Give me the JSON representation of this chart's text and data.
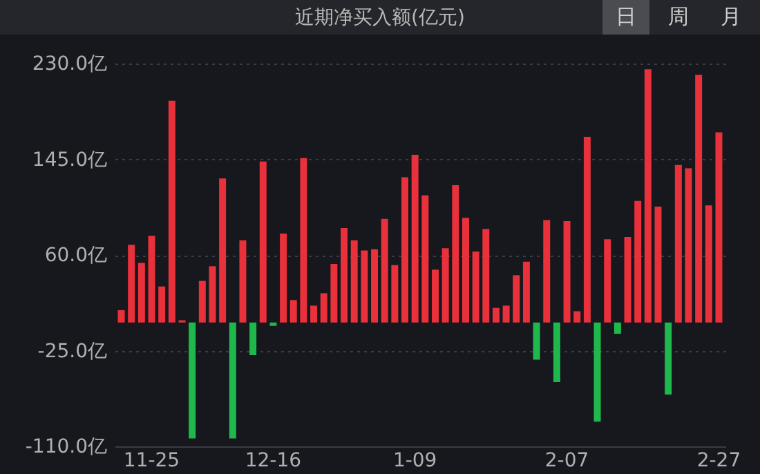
{
  "chart_data": {
    "type": "bar",
    "title": "近期净买入额(亿元)",
    "annotations": [
      "日",
      "周",
      "月"
    ],
    "categories": [
      null,
      null,
      null,
      "11-25",
      null,
      null,
      null,
      null,
      null,
      null,
      null,
      null,
      null,
      null,
      null,
      "12-16",
      null,
      null,
      null,
      null,
      null,
      null,
      null,
      null,
      null,
      null,
      null,
      null,
      null,
      "1-09",
      null,
      null,
      null,
      null,
      null,
      null,
      null,
      null,
      null,
      null,
      null,
      null,
      null,
      null,
      "2-07",
      null,
      null,
      null,
      null,
      null,
      null,
      null,
      null,
      null,
      null,
      null,
      null,
      null,
      null,
      "2-27"
    ],
    "values": [
      11,
      69,
      53,
      77,
      32,
      197,
      2,
      -103,
      37,
      50,
      128,
      -103,
      73,
      -29,
      143,
      -3,
      79,
      20,
      146,
      15,
      26,
      52,
      84,
      73,
      64,
      65,
      92,
      51,
      129,
      149,
      113,
      47,
      66,
      122,
      93,
      63,
      83,
      13,
      15,
      42,
      54,
      -33,
      91,
      -53,
      90,
      10,
      165,
      -88,
      74,
      -10,
      76,
      108,
      225,
      103,
      -64,
      140,
      137,
      220,
      104,
      169
    ],
    "colors": [
      "#e8313b",
      "#e8313b",
      "#e8313b",
      "#e8313b",
      "#e8313b",
      "#e8313b",
      "#e8313b",
      "#1fb84d",
      "#e8313b",
      "#e8313b",
      "#e8313b",
      "#1fb84d",
      "#e8313b",
      "#1fb84d",
      "#e8313b",
      "#1fb84d",
      "#e8313b",
      "#e8313b",
      "#e8313b",
      "#e8313b",
      "#e8313b",
      "#e8313b",
      "#e8313b",
      "#e8313b",
      "#e8313b",
      "#e8313b",
      "#e8313b",
      "#e8313b",
      "#e8313b",
      "#e8313b",
      "#e8313b",
      "#e8313b",
      "#e8313b",
      "#e8313b",
      "#e8313b",
      "#e8313b",
      "#e8313b",
      "#e8313b",
      "#e8313b",
      "#e8313b",
      "#e8313b",
      "#1fb84d",
      "#e8313b",
      "#1fb84d",
      "#e8313b",
      "#e8313b",
      "#e8313b",
      "#1fb84d",
      "#e8313b",
      "#1fb84d",
      "#e8313b",
      "#e8313b",
      "#e8313b",
      "#e8313b",
      "#1fb84d",
      "#e8313b",
      "#e8313b",
      "#e8313b",
      "#e8313b",
      "#e8313b"
    ],
    "ylim": [
      -110,
      230
    ],
    "yticks": [
      {
        "value": 230,
        "label": "230.0亿"
      },
      {
        "value": 145,
        "label": "145.0亿"
      },
      {
        "value": 60,
        "label": "60.0亿"
      },
      {
        "value": -25,
        "label": "-25.0亿"
      },
      {
        "value": -110,
        "label": "-110.0亿"
      }
    ],
    "grid": "y"
  }
}
